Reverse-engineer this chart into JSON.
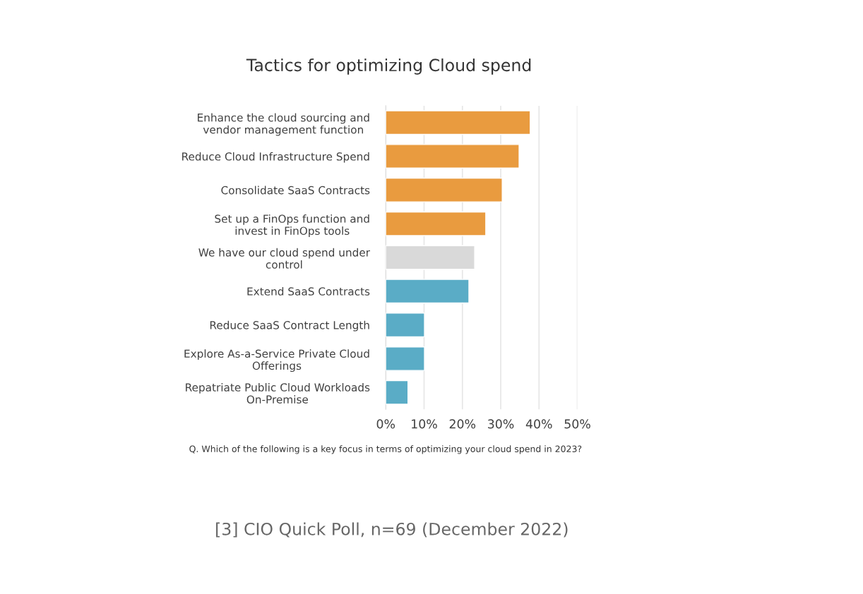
{
  "chart_data": {
    "type": "bar",
    "orientation": "horizontal",
    "title": "Tactics for optimizing Cloud spend",
    "categories": [
      "Enhance the cloud sourcing and\nvendor management function",
      "Reduce Cloud Infrastructure Spend",
      "Consolidate SaaS Contracts",
      "Set up a FinOps function and\ninvest in FinOps tools",
      "We have our cloud spend under\ncontrol",
      "Extend SaaS Contracts",
      "Reduce SaaS Contract Length",
      "Explore As-a-Service Private Cloud\nOfferings",
      "Repatriate Public Cloud Workloads\nOn-Premise"
    ],
    "values": [
      37.7,
      34.8,
      30.4,
      26.1,
      23.2,
      21.7,
      10.1,
      10.1,
      5.8
    ],
    "colors": [
      "#e99b3f",
      "#e99b3f",
      "#e99b3f",
      "#e99b3f",
      "#d9d9d9",
      "#5aacc6",
      "#5aacc6",
      "#5aacc6",
      "#5aacc6"
    ],
    "xlim": [
      0,
      50
    ],
    "xticks": [
      {
        "value": 0,
        "label": "0%"
      },
      {
        "value": 10,
        "label": "10%"
      },
      {
        "value": 20,
        "label": "20%"
      },
      {
        "value": 30,
        "label": "30%"
      },
      {
        "value": 40,
        "label": "40%"
      },
      {
        "value": 50,
        "label": "50%"
      }
    ],
    "grid": "x",
    "annotations": [
      "Q. Which of the following is a key focus in terms of optimizing your cloud spend in 2023?",
      "[3] CIO Quick Poll, n=69 (December 2022)"
    ]
  }
}
